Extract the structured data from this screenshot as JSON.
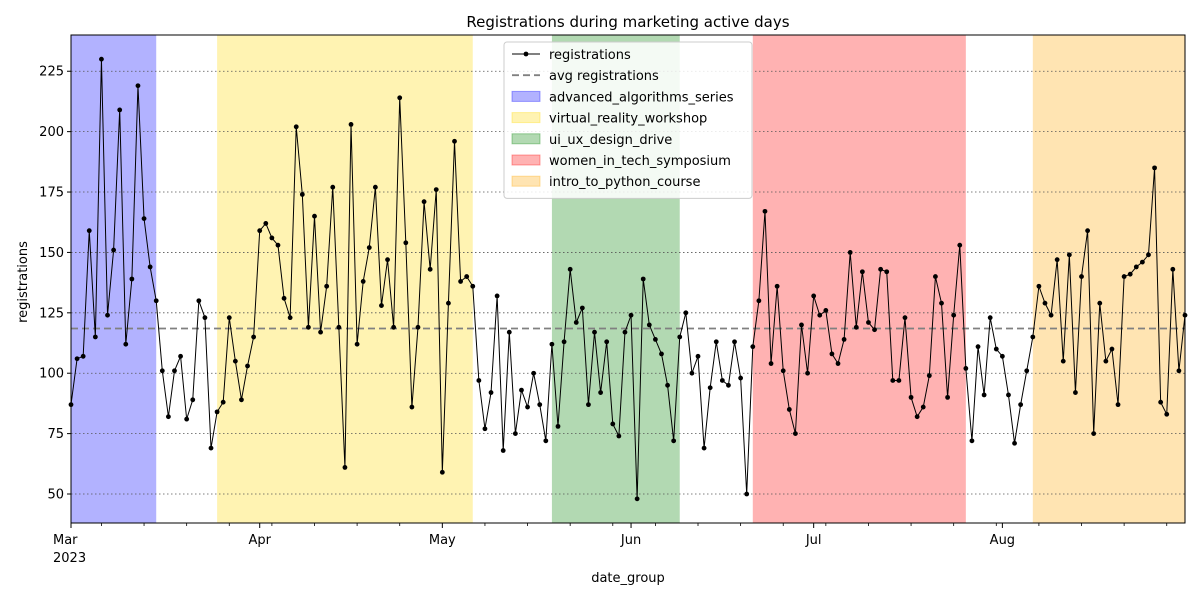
{
  "chart_data": {
    "type": "line",
    "title": "Registrations during marketing active days",
    "xlabel": "date_group",
    "ylabel": "registrations",
    "x_start": "2023-03-01",
    "x_end": "2023-08-31",
    "ylim": [
      38,
      240
    ],
    "yticks": [
      50,
      75,
      100,
      125,
      150,
      175,
      200,
      225
    ],
    "xticks": [
      {
        "date": "2023-03-01",
        "label": "Mar",
        "sublabel": "2023"
      },
      {
        "date": "2023-04-01",
        "label": "Apr",
        "sublabel": ""
      },
      {
        "date": "2023-05-01",
        "label": "May",
        "sublabel": ""
      },
      {
        "date": "2023-06-01",
        "label": "Jun",
        "sublabel": ""
      },
      {
        "date": "2023-07-01",
        "label": "Jul",
        "sublabel": ""
      },
      {
        "date": "2023-08-01",
        "label": "Aug",
        "sublabel": ""
      }
    ],
    "grid": "horizontal dotted",
    "legend_position": "top-center",
    "series": [
      {
        "name": "registrations",
        "color": "#000000",
        "values": [
          87,
          106,
          107,
          159,
          115,
          230,
          124,
          151,
          209,
          112,
          139,
          219,
          164,
          144,
          130,
          101,
          82,
          101,
          107,
          81,
          89,
          130,
          123,
          69,
          84,
          88,
          123,
          105,
          89,
          103,
          115,
          159,
          162,
          156,
          153,
          131,
          123,
          202,
          174,
          119,
          165,
          117,
          136,
          177,
          119,
          61,
          203,
          112,
          138,
          152,
          177,
          128,
          147,
          119,
          214,
          154,
          86,
          119,
          171,
          143,
          176,
          59,
          129,
          196,
          138,
          140,
          136,
          97,
          77,
          92,
          132,
          68,
          117,
          75,
          93,
          86,
          100,
          87,
          72,
          112,
          78,
          113,
          143,
          121,
          127,
          87,
          117,
          92,
          113,
          79,
          74,
          117,
          124,
          48,
          139,
          120,
          114,
          108,
          95,
          72,
          115,
          125,
          100,
          107,
          69,
          94,
          113,
          97,
          95,
          113,
          98,
          50,
          111,
          130,
          167,
          104,
          136,
          101,
          85,
          75,
          120,
          100,
          132,
          124,
          126,
          108,
          104,
          114,
          150,
          119,
          142,
          121,
          118,
          143,
          142,
          97,
          97,
          123,
          90,
          82,
          86,
          99,
          140,
          129,
          90,
          124,
          153,
          102,
          72,
          111,
          91,
          123,
          110,
          107,
          91,
          71,
          87,
          101,
          115,
          136,
          129,
          124,
          147,
          105,
          149,
          92,
          140,
          159,
          75,
          129,
          105,
          110,
          87,
          140,
          141,
          144,
          146,
          149,
          185,
          88,
          83,
          143,
          101,
          124
        ]
      }
    ],
    "avg_line": {
      "name": "avg registrations",
      "value": 118.5,
      "color": "#808080"
    },
    "campaigns": [
      {
        "name": "advanced_algorithms_series",
        "start": "2023-03-01",
        "end": "2023-03-15",
        "color": "#0000ff",
        "alpha": 0.3
      },
      {
        "name": "virtual_reality_workshop",
        "start": "2023-03-25",
        "end": "2023-05-06",
        "color": "#ffd700",
        "alpha": 0.3
      },
      {
        "name": "ui_ux_design_drive",
        "start": "2023-05-19",
        "end": "2023-06-09",
        "color": "#008000",
        "alpha": 0.3
      },
      {
        "name": "women_in_tech_symposium",
        "start": "2023-06-21",
        "end": "2023-07-26",
        "color": "#ff0000",
        "alpha": 0.3
      },
      {
        "name": "intro_to_python_course",
        "start": "2023-08-06",
        "end": "2023-08-31",
        "color": "#ffa500",
        "alpha": 0.3
      }
    ]
  }
}
